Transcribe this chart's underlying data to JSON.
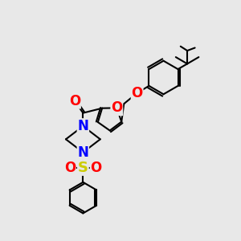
{
  "bg_color": "#e8e8e8",
  "bond_color": "#000000",
  "bond_width": 1.5,
  "atom_colors": {
    "O": "#ff0000",
    "N": "#0000ff",
    "S": "#cccc00",
    "C": "#000000"
  }
}
